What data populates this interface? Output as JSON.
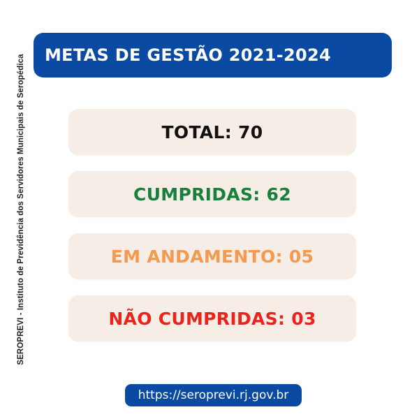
{
  "side_caption": "SEROPREVI - Instituto de Previdência dos Servidores Municipais de Seropédica",
  "header": {
    "title": "METAS DE GESTÃO 2021-2024"
  },
  "stats": {
    "total": "TOTAL: 70",
    "cumpridas": "CUMPRIDAS: 62",
    "em_andamento": "EM ANDAMENTO: 05",
    "nao_cumpridas": "NÃO CUMPRIDAS: 03"
  },
  "colors": {
    "brand_blue": "#0a4aa3",
    "card_bg": "#f6eee6",
    "total": "#111111",
    "cumpridas": "#16803c",
    "em_andamento": "#f39a4f",
    "nao_cumpridas": "#e8241c"
  },
  "footer": {
    "url": "https://seroprevi.rj.gov.br"
  }
}
